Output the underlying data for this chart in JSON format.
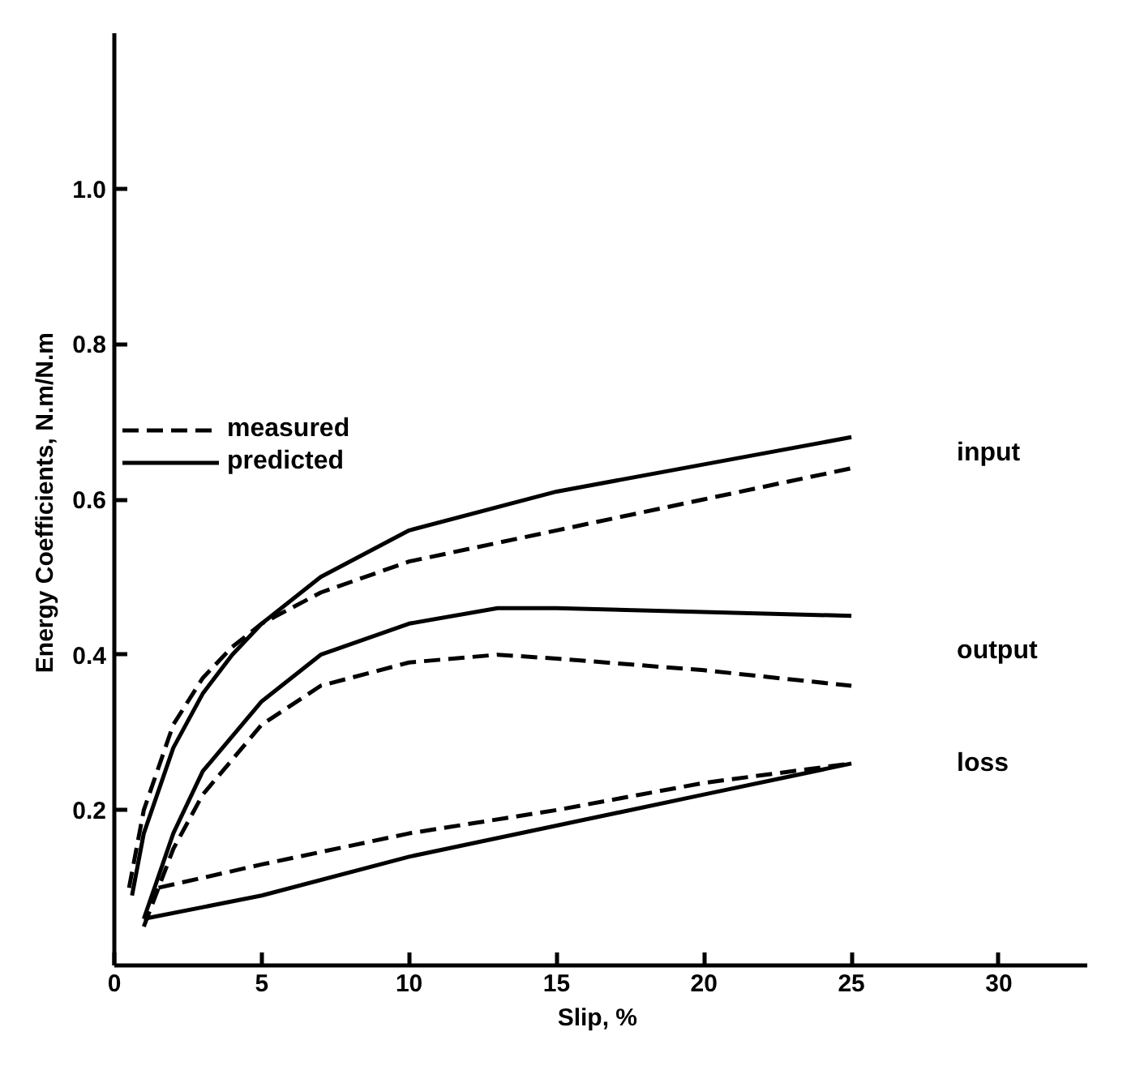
{
  "chart_data": {
    "type": "line",
    "xlabel": "Slip,  %",
    "ylabel": "Energy Coefficients,  N.m/N.m",
    "xlim": [
      0,
      33
    ],
    "ylim": [
      0,
      1.2
    ],
    "xticks": [
      0,
      5,
      10,
      15,
      20,
      25,
      30
    ],
    "yticks": [
      0.2,
      0.4,
      0.6,
      0.8,
      {
        "value": 1.0,
        "label": "1.0"
      }
    ],
    "grid": false,
    "legend": "top left",
    "marker": "none",
    "series": [
      {
        "name": "measured",
        "color": "#000000",
        "line_style": "dashed",
        "x": [
          0.5,
          1,
          2,
          3,
          4,
          5,
          7,
          10,
          15,
          20,
          25
        ],
        "values": [
          0.1,
          0.2,
          0.31,
          0.37,
          0.41,
          0.44,
          0.48,
          0.52,
          0.56,
          0.6,
          0.64
        ]
      },
      {
        "name": "predicted",
        "color": "#000000",
        "line_style": "solid",
        "x": [
          0.6,
          1,
          2,
          3,
          4,
          5,
          7,
          10,
          15,
          20,
          25
        ],
        "values": [
          0.09,
          0.17,
          0.28,
          0.35,
          0.4,
          0.44,
          0.5,
          0.56,
          0.61,
          0.645,
          0.68
        ]
      },
      {
        "color": "#000000",
        "line_style": "dashed",
        "x": [
          1,
          2,
          3,
          5,
          7,
          10,
          13,
          15,
          20,
          25
        ],
        "values": [
          0.05,
          0.15,
          0.22,
          0.31,
          0.36,
          0.39,
          0.4,
          0.395,
          0.38,
          0.36
        ]
      },
      {
        "color": "#000000",
        "line_style": "solid",
        "x": [
          1,
          2,
          3,
          5,
          7,
          10,
          13,
          15,
          20,
          25
        ],
        "values": [
          0.06,
          0.17,
          0.25,
          0.34,
          0.4,
          0.44,
          0.46,
          0.46,
          0.455,
          0.45
        ]
      },
      {
        "color": "#000000",
        "line_style": "dashed",
        "x": [
          1.5,
          5,
          10,
          15,
          20,
          25
        ],
        "values": [
          0.1,
          0.13,
          0.17,
          0.2,
          0.235,
          0.26
        ]
      },
      {
        "color": "#000000",
        "line_style": "solid",
        "x": [
          1,
          5,
          10,
          15,
          20,
          25
        ],
        "values": [
          0.06,
          0.09,
          0.14,
          0.18,
          0.22,
          0.26
        ]
      }
    ],
    "annotations": [
      "input",
      "output",
      "loss"
    ]
  }
}
